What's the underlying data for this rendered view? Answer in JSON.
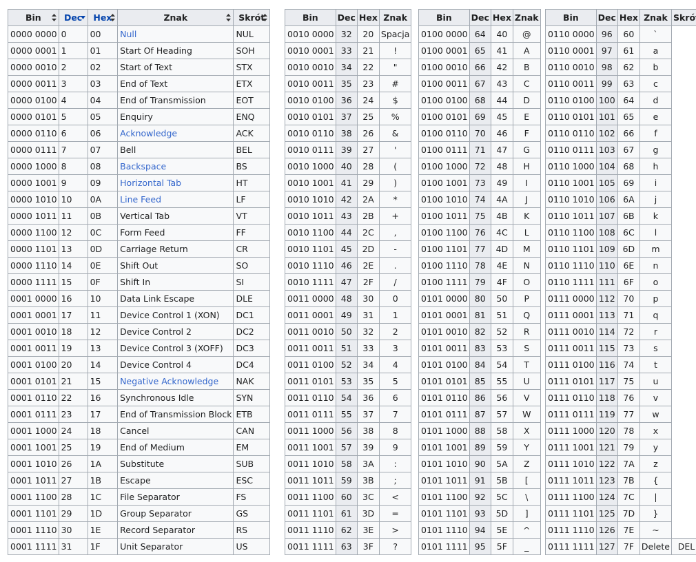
{
  "headers": {
    "bin": "Bin",
    "dec": "Dec",
    "hex": "Hex",
    "znak": "Znak",
    "skrot": "Skrót"
  },
  "table1": [
    {
      "bin": "0000 0000",
      "dec": "0",
      "hex": "00",
      "name": "Null",
      "abbr": "NUL",
      "link": true
    },
    {
      "bin": "0000 0001",
      "dec": "1",
      "hex": "01",
      "name": "Start Of Heading",
      "abbr": "SOH"
    },
    {
      "bin": "0000 0010",
      "dec": "2",
      "hex": "02",
      "name": "Start of Text",
      "abbr": "STX"
    },
    {
      "bin": "0000 0011",
      "dec": "3",
      "hex": "03",
      "name": "End of Text",
      "abbr": "ETX"
    },
    {
      "bin": "0000 0100",
      "dec": "4",
      "hex": "04",
      "name": "End of Transmission",
      "abbr": "EOT"
    },
    {
      "bin": "0000 0101",
      "dec": "5",
      "hex": "05",
      "name": "Enquiry",
      "abbr": "ENQ"
    },
    {
      "bin": "0000 0110",
      "dec": "6",
      "hex": "06",
      "name": "Acknowledge",
      "abbr": "ACK",
      "link": true
    },
    {
      "bin": "0000 0111",
      "dec": "7",
      "hex": "07",
      "name": "Bell",
      "abbr": "BEL"
    },
    {
      "bin": "0000 1000",
      "dec": "8",
      "hex": "08",
      "name": "Backspace",
      "abbr": "BS",
      "link": true
    },
    {
      "bin": "0000 1001",
      "dec": "9",
      "hex": "09",
      "name": "Horizontal Tab",
      "abbr": "HT",
      "link": true
    },
    {
      "bin": "0000 1010",
      "dec": "10",
      "hex": "0A",
      "name": "Line Feed",
      "abbr": "LF",
      "link": true
    },
    {
      "bin": "0000 1011",
      "dec": "11",
      "hex": "0B",
      "name": "Vertical Tab",
      "abbr": "VT"
    },
    {
      "bin": "0000 1100",
      "dec": "12",
      "hex": "0C",
      "name": "Form Feed",
      "abbr": "FF"
    },
    {
      "bin": "0000 1101",
      "dec": "13",
      "hex": "0D",
      "name": "Carriage Return",
      "abbr": "CR"
    },
    {
      "bin": "0000 1110",
      "dec": "14",
      "hex": "0E",
      "name": "Shift Out",
      "abbr": "SO"
    },
    {
      "bin": "0000 1111",
      "dec": "15",
      "hex": "0F",
      "name": "Shift In",
      "abbr": "SI"
    },
    {
      "bin": "0001 0000",
      "dec": "16",
      "hex": "10",
      "name": "Data Link Escape",
      "abbr": "DLE"
    },
    {
      "bin": "0001 0001",
      "dec": "17",
      "hex": "11",
      "name": "Device Control 1 (XON)",
      "abbr": "DC1"
    },
    {
      "bin": "0001 0010",
      "dec": "18",
      "hex": "12",
      "name": "Device Control 2",
      "abbr": "DC2"
    },
    {
      "bin": "0001 0011",
      "dec": "19",
      "hex": "13",
      "name": "Device Control 3 (XOFF)",
      "abbr": "DC3"
    },
    {
      "bin": "0001 0100",
      "dec": "20",
      "hex": "14",
      "name": "Device Control 4",
      "abbr": "DC4"
    },
    {
      "bin": "0001 0101",
      "dec": "21",
      "hex": "15",
      "name": "Negative Acknowledge",
      "abbr": "NAK",
      "link": true
    },
    {
      "bin": "0001 0110",
      "dec": "22",
      "hex": "16",
      "name": "Synchronous Idle",
      "abbr": "SYN"
    },
    {
      "bin": "0001 0111",
      "dec": "23",
      "hex": "17",
      "name": "End of Transmission Block",
      "abbr": "ETB"
    },
    {
      "bin": "0001 1000",
      "dec": "24",
      "hex": "18",
      "name": "Cancel",
      "abbr": "CAN"
    },
    {
      "bin": "0001 1001",
      "dec": "25",
      "hex": "19",
      "name": "End of Medium",
      "abbr": "EM"
    },
    {
      "bin": "0001 1010",
      "dec": "26",
      "hex": "1A",
      "name": "Substitute",
      "abbr": "SUB"
    },
    {
      "bin": "0001 1011",
      "dec": "27",
      "hex": "1B",
      "name": "Escape",
      "abbr": "ESC"
    },
    {
      "bin": "0001 1100",
      "dec": "28",
      "hex": "1C",
      "name": "File Separator",
      "abbr": "FS"
    },
    {
      "bin": "0001 1101",
      "dec": "29",
      "hex": "1D",
      "name": "Group Separator",
      "abbr": "GS"
    },
    {
      "bin": "0001 1110",
      "dec": "30",
      "hex": "1E",
      "name": "Record Separator",
      "abbr": "RS"
    },
    {
      "bin": "0001 1111",
      "dec": "31",
      "hex": "1F",
      "name": "Unit Separator",
      "abbr": "US"
    }
  ],
  "table2": [
    {
      "bin": "0010 0000",
      "dec": "32",
      "hex": "20",
      "ch": "Spacja"
    },
    {
      "bin": "0010 0001",
      "dec": "33",
      "hex": "21",
      "ch": "!"
    },
    {
      "bin": "0010 0010",
      "dec": "34",
      "hex": "22",
      "ch": "\""
    },
    {
      "bin": "0010 0011",
      "dec": "35",
      "hex": "23",
      "ch": "#"
    },
    {
      "bin": "0010 0100",
      "dec": "36",
      "hex": "24",
      "ch": "$"
    },
    {
      "bin": "0010 0101",
      "dec": "37",
      "hex": "25",
      "ch": "%"
    },
    {
      "bin": "0010 0110",
      "dec": "38",
      "hex": "26",
      "ch": "&"
    },
    {
      "bin": "0010 0111",
      "dec": "39",
      "hex": "27",
      "ch": "'"
    },
    {
      "bin": "0010 1000",
      "dec": "40",
      "hex": "28",
      "ch": "("
    },
    {
      "bin": "0010 1001",
      "dec": "41",
      "hex": "29",
      "ch": ")"
    },
    {
      "bin": "0010 1010",
      "dec": "42",
      "hex": "2A",
      "ch": "*"
    },
    {
      "bin": "0010 1011",
      "dec": "43",
      "hex": "2B",
      "ch": "+"
    },
    {
      "bin": "0010 1100",
      "dec": "44",
      "hex": "2C",
      "ch": ","
    },
    {
      "bin": "0010 1101",
      "dec": "45",
      "hex": "2D",
      "ch": "-"
    },
    {
      "bin": "0010 1110",
      "dec": "46",
      "hex": "2E",
      "ch": "."
    },
    {
      "bin": "0010 1111",
      "dec": "47",
      "hex": "2F",
      "ch": "/"
    },
    {
      "bin": "0011 0000",
      "dec": "48",
      "hex": "30",
      "ch": "0"
    },
    {
      "bin": "0011 0001",
      "dec": "49",
      "hex": "31",
      "ch": "1"
    },
    {
      "bin": "0011 0010",
      "dec": "50",
      "hex": "32",
      "ch": "2"
    },
    {
      "bin": "0011 0011",
      "dec": "51",
      "hex": "33",
      "ch": "3"
    },
    {
      "bin": "0011 0100",
      "dec": "52",
      "hex": "34",
      "ch": "4"
    },
    {
      "bin": "0011 0101",
      "dec": "53",
      "hex": "35",
      "ch": "5"
    },
    {
      "bin": "0011 0110",
      "dec": "54",
      "hex": "36",
      "ch": "6"
    },
    {
      "bin": "0011 0111",
      "dec": "55",
      "hex": "37",
      "ch": "7"
    },
    {
      "bin": "0011 1000",
      "dec": "56",
      "hex": "38",
      "ch": "8"
    },
    {
      "bin": "0011 1001",
      "dec": "57",
      "hex": "39",
      "ch": "9"
    },
    {
      "bin": "0011 1010",
      "dec": "58",
      "hex": "3A",
      "ch": ":"
    },
    {
      "bin": "0011 1011",
      "dec": "59",
      "hex": "3B",
      "ch": ";"
    },
    {
      "bin": "0011 1100",
      "dec": "60",
      "hex": "3C",
      "ch": "<"
    },
    {
      "bin": "0011 1101",
      "dec": "61",
      "hex": "3D",
      "ch": "="
    },
    {
      "bin": "0011 1110",
      "dec": "62",
      "hex": "3E",
      "ch": ">"
    },
    {
      "bin": "0011 1111",
      "dec": "63",
      "hex": "3F",
      "ch": "?"
    }
  ],
  "table3": [
    {
      "bin": "0100 0000",
      "dec": "64",
      "hex": "40",
      "ch": "@"
    },
    {
      "bin": "0100 0001",
      "dec": "65",
      "hex": "41",
      "ch": "A"
    },
    {
      "bin": "0100 0010",
      "dec": "66",
      "hex": "42",
      "ch": "B"
    },
    {
      "bin": "0100 0011",
      "dec": "67",
      "hex": "43",
      "ch": "C"
    },
    {
      "bin": "0100 0100",
      "dec": "68",
      "hex": "44",
      "ch": "D"
    },
    {
      "bin": "0100 0101",
      "dec": "69",
      "hex": "45",
      "ch": "E"
    },
    {
      "bin": "0100 0110",
      "dec": "70",
      "hex": "46",
      "ch": "F"
    },
    {
      "bin": "0100 0111",
      "dec": "71",
      "hex": "47",
      "ch": "G"
    },
    {
      "bin": "0100 1000",
      "dec": "72",
      "hex": "48",
      "ch": "H"
    },
    {
      "bin": "0100 1001",
      "dec": "73",
      "hex": "49",
      "ch": "I"
    },
    {
      "bin": "0100 1010",
      "dec": "74",
      "hex": "4A",
      "ch": "J"
    },
    {
      "bin": "0100 1011",
      "dec": "75",
      "hex": "4B",
      "ch": "K"
    },
    {
      "bin": "0100 1100",
      "dec": "76",
      "hex": "4C",
      "ch": "L"
    },
    {
      "bin": "0100 1101",
      "dec": "77",
      "hex": "4D",
      "ch": "M"
    },
    {
      "bin": "0100 1110",
      "dec": "78",
      "hex": "4E",
      "ch": "N"
    },
    {
      "bin": "0100 1111",
      "dec": "79",
      "hex": "4F",
      "ch": "O"
    },
    {
      "bin": "0101 0000",
      "dec": "80",
      "hex": "50",
      "ch": "P"
    },
    {
      "bin": "0101 0001",
      "dec": "81",
      "hex": "51",
      "ch": "Q"
    },
    {
      "bin": "0101 0010",
      "dec": "82",
      "hex": "52",
      "ch": "R"
    },
    {
      "bin": "0101 0011",
      "dec": "83",
      "hex": "53",
      "ch": "S"
    },
    {
      "bin": "0101 0100",
      "dec": "84",
      "hex": "54",
      "ch": "T"
    },
    {
      "bin": "0101 0101",
      "dec": "85",
      "hex": "55",
      "ch": "U"
    },
    {
      "bin": "0101 0110",
      "dec": "86",
      "hex": "56",
      "ch": "V"
    },
    {
      "bin": "0101 0111",
      "dec": "87",
      "hex": "57",
      "ch": "W"
    },
    {
      "bin": "0101 1000",
      "dec": "88",
      "hex": "58",
      "ch": "X"
    },
    {
      "bin": "0101 1001",
      "dec": "89",
      "hex": "59",
      "ch": "Y"
    },
    {
      "bin": "0101 1010",
      "dec": "90",
      "hex": "5A",
      "ch": "Z"
    },
    {
      "bin": "0101 1011",
      "dec": "91",
      "hex": "5B",
      "ch": "["
    },
    {
      "bin": "0101 1100",
      "dec": "92",
      "hex": "5C",
      "ch": "\\"
    },
    {
      "bin": "0101 1101",
      "dec": "93",
      "hex": "5D",
      "ch": "]"
    },
    {
      "bin": "0101 1110",
      "dec": "94",
      "hex": "5E",
      "ch": "^"
    },
    {
      "bin": "0101 1111",
      "dec": "95",
      "hex": "5F",
      "ch": "_"
    }
  ],
  "table4": [
    {
      "bin": "0110 0000",
      "dec": "96",
      "hex": "60",
      "ch": "`"
    },
    {
      "bin": "0110 0001",
      "dec": "97",
      "hex": "61",
      "ch": "a"
    },
    {
      "bin": "0110 0010",
      "dec": "98",
      "hex": "62",
      "ch": "b"
    },
    {
      "bin": "0110 0011",
      "dec": "99",
      "hex": "63",
      "ch": "c"
    },
    {
      "bin": "0110 0100",
      "dec": "100",
      "hex": "64",
      "ch": "d"
    },
    {
      "bin": "0110 0101",
      "dec": "101",
      "hex": "65",
      "ch": "e"
    },
    {
      "bin": "0110 0110",
      "dec": "102",
      "hex": "66",
      "ch": "f"
    },
    {
      "bin": "0110 0111",
      "dec": "103",
      "hex": "67",
      "ch": "g"
    },
    {
      "bin": "0110 1000",
      "dec": "104",
      "hex": "68",
      "ch": "h"
    },
    {
      "bin": "0110 1001",
      "dec": "105",
      "hex": "69",
      "ch": "i"
    },
    {
      "bin": "0110 1010",
      "dec": "106",
      "hex": "6A",
      "ch": "j"
    },
    {
      "bin": "0110 1011",
      "dec": "107",
      "hex": "6B",
      "ch": "k"
    },
    {
      "bin": "0110 1100",
      "dec": "108",
      "hex": "6C",
      "ch": "l"
    },
    {
      "bin": "0110 1101",
      "dec": "109",
      "hex": "6D",
      "ch": "m"
    },
    {
      "bin": "0110 1110",
      "dec": "110",
      "hex": "6E",
      "ch": "n"
    },
    {
      "bin": "0110 1111",
      "dec": "111",
      "hex": "6F",
      "ch": "o"
    },
    {
      "bin": "0111 0000",
      "dec": "112",
      "hex": "70",
      "ch": "p"
    },
    {
      "bin": "0111 0001",
      "dec": "113",
      "hex": "71",
      "ch": "q"
    },
    {
      "bin": "0111 0010",
      "dec": "114",
      "hex": "72",
      "ch": "r"
    },
    {
      "bin": "0111 0011",
      "dec": "115",
      "hex": "73",
      "ch": "s"
    },
    {
      "bin": "0111 0100",
      "dec": "116",
      "hex": "74",
      "ch": "t"
    },
    {
      "bin": "0111 0101",
      "dec": "117",
      "hex": "75",
      "ch": "u"
    },
    {
      "bin": "0111 0110",
      "dec": "118",
      "hex": "76",
      "ch": "v"
    },
    {
      "bin": "0111 0111",
      "dec": "119",
      "hex": "77",
      "ch": "w"
    },
    {
      "bin": "0111 1000",
      "dec": "120",
      "hex": "78",
      "ch": "x"
    },
    {
      "bin": "0111 1001",
      "dec": "121",
      "hex": "79",
      "ch": "y"
    },
    {
      "bin": "0111 1010",
      "dec": "122",
      "hex": "7A",
      "ch": "z"
    },
    {
      "bin": "0111 1011",
      "dec": "123",
      "hex": "7B",
      "ch": "{"
    },
    {
      "bin": "0111 1100",
      "dec": "124",
      "hex": "7C",
      "ch": "|"
    },
    {
      "bin": "0111 1101",
      "dec": "125",
      "hex": "7D",
      "ch": "}"
    },
    {
      "bin": "0111 1110",
      "dec": "126",
      "hex": "7E",
      "ch": "~"
    },
    {
      "bin": "0111 1111",
      "dec": "127",
      "hex": "7F",
      "ch": "Delete",
      "abbr": "DEL"
    }
  ]
}
